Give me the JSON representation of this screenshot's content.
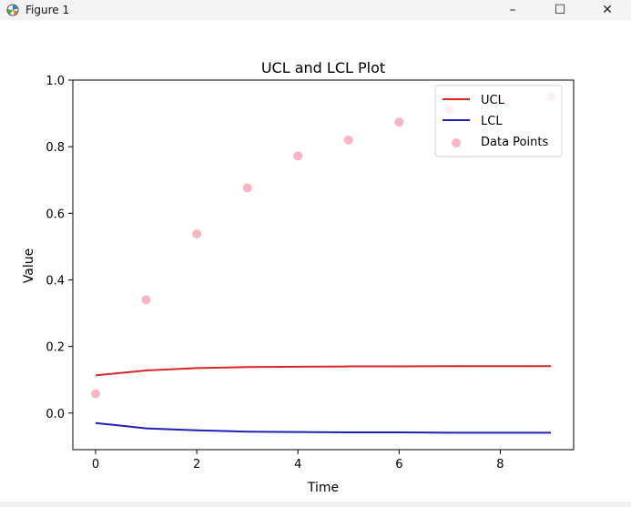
{
  "window": {
    "title": "Figure 1",
    "minimize_symbol": "–",
    "maximize_symbol": "☐",
    "close_symbol": "✕",
    "icon": "matplotlib-icon"
  },
  "chart_data": {
    "type": "line",
    "title": "UCL and LCL Plot",
    "xlabel": "Time",
    "ylabel": "Value",
    "xlim": [
      -0.45,
      9.45
    ],
    "ylim": [
      -0.11,
      1.0
    ],
    "xticks": [
      0,
      2,
      4,
      6,
      8
    ],
    "xtick_labels": [
      "0",
      "2",
      "4",
      "6",
      "8"
    ],
    "yticks": [
      0.0,
      0.2,
      0.4,
      0.6,
      0.8,
      1.0
    ],
    "ytick_labels": [
      "0.0",
      "0.2",
      "0.4",
      "0.6",
      "0.8",
      "1.0"
    ],
    "grid": false,
    "legend_position": "top-right",
    "x": [
      0,
      1,
      2,
      3,
      4,
      5,
      6,
      7,
      8,
      9
    ],
    "series": [
      {
        "name": "UCL",
        "kind": "line",
        "color": "#d62728",
        "values": [
          0.113,
          0.128,
          0.135,
          0.138,
          0.139,
          0.14,
          0.14,
          0.141,
          0.141,
          0.141
        ]
      },
      {
        "name": "LCL",
        "kind": "line",
        "color": "#1f1fb4",
        "values": [
          -0.03,
          -0.046,
          -0.052,
          -0.056,
          -0.057,
          -0.058,
          -0.058,
          -0.059,
          -0.059,
          -0.059
        ]
      },
      {
        "name": "Data Points",
        "kind": "scatter",
        "color": "#f7b6c2",
        "values": [
          0.058,
          0.34,
          0.538,
          0.676,
          0.772,
          0.82,
          0.874,
          0.911,
          0.935,
          0.95
        ]
      }
    ]
  }
}
